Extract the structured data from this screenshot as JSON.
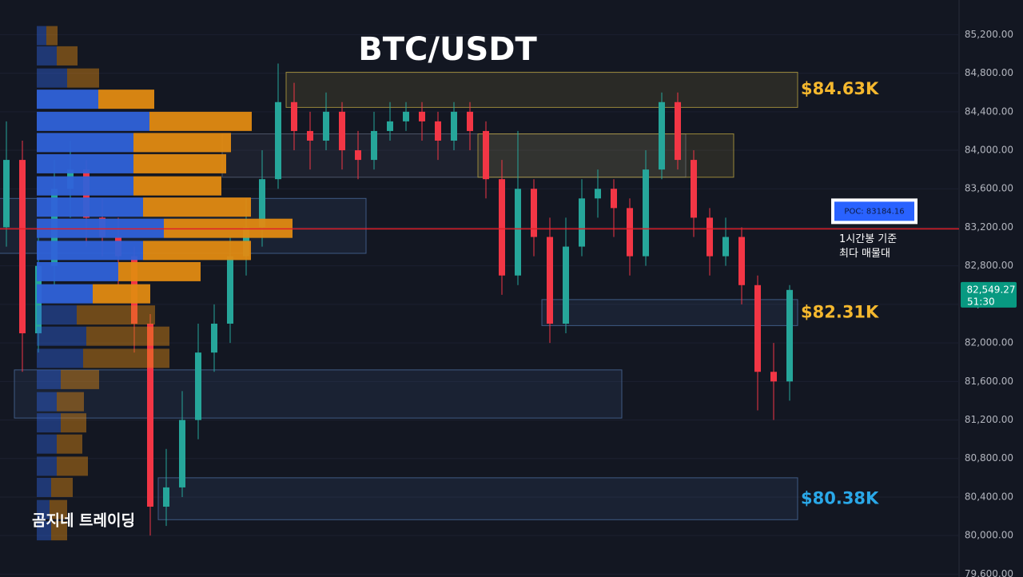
{
  "chart_data": {
    "type": "candlestick",
    "title": "BTC/USDT",
    "watermark": "곰지네 트레이딩",
    "open": [
      83200,
      83900,
      82100,
      82800,
      83600,
      83800,
      83300,
      83100,
      82900,
      82200,
      80300,
      80500,
      81200,
      81900,
      82200,
      82900,
      83200,
      83700,
      84500,
      84200,
      84100,
      84400,
      84000,
      83900,
      84200,
      84300,
      84400,
      84300,
      84100,
      84400,
      84200,
      83700,
      82700,
      83600,
      83100,
      82200,
      83000,
      83500,
      83600,
      83400,
      82900,
      83800,
      84500,
      83900,
      83300,
      82900,
      83100,
      82600,
      81700,
      81600
    ],
    "high": [
      84300,
      84100,
      83200,
      83900,
      84100,
      83900,
      83500,
      83300,
      83000,
      82300,
      80900,
      81500,
      82200,
      82400,
      83100,
      83500,
      84000,
      84900,
      84700,
      84400,
      84600,
      84500,
      84200,
      84400,
      84500,
      84500,
      84500,
      84400,
      84500,
      84500,
      84300,
      83900,
      84200,
      83700,
      83300,
      83300,
      83700,
      83800,
      83700,
      83500,
      84000,
      84600,
      84600,
      84000,
      83400,
      83300,
      83200,
      82700,
      82000,
      82600
    ],
    "low": [
      83000,
      81700,
      81900,
      82600,
      83300,
      83000,
      82900,
      82600,
      81900,
      80000,
      80100,
      80400,
      81000,
      81700,
      82000,
      82700,
      83000,
      83600,
      84000,
      83800,
      84000,
      83800,
      83700,
      83800,
      84100,
      84200,
      84100,
      83900,
      84000,
      84000,
      83500,
      82500,
      82600,
      82900,
      82000,
      82100,
      82900,
      83300,
      83100,
      82700,
      82800,
      83700,
      83800,
      83100,
      82700,
      82800,
      82400,
      81300,
      81200,
      81400
    ],
    "close": [
      83900,
      82100,
      82800,
      83600,
      83800,
      83300,
      83100,
      82900,
      82200,
      80300,
      80500,
      81200,
      81900,
      82200,
      82900,
      83200,
      83700,
      84500,
      84200,
      84100,
      84400,
      84000,
      83900,
      84200,
      84300,
      84400,
      84300,
      84100,
      84400,
      84200,
      83700,
      82700,
      83600,
      83100,
      82200,
      83000,
      83500,
      83600,
      83400,
      82900,
      83800,
      84500,
      83900,
      83300,
      82900,
      83100,
      82600,
      81700,
      81600,
      82550
    ],
    "up_color": "#26a69a",
    "down_color": "#f23645",
    "ylim": [
      79570,
      85560
    ],
    "yticks": [
      {
        "value": 79600,
        "label": "79,600.00"
      },
      {
        "value": 80000,
        "label": "80,000.00"
      },
      {
        "value": 80400,
        "label": "80,400.00"
      },
      {
        "value": 80800,
        "label": "80,800.00"
      },
      {
        "value": 81200,
        "label": "81,200.00"
      },
      {
        "value": 81600,
        "label": "81,600.00"
      },
      {
        "value": 82000,
        "label": "82,000.00"
      },
      {
        "value": 82400,
        "label": "82,400.00"
      },
      {
        "value": 82800,
        "label": "82,800.00"
      },
      {
        "value": 83200,
        "label": "83,200.00"
      },
      {
        "value": 83600,
        "label": "83,600.00"
      },
      {
        "value": 84000,
        "label": "84,000.00"
      },
      {
        "value": 84400,
        "label": "84,400.00"
      },
      {
        "value": 84800,
        "label": "84,800.00"
      },
      {
        "value": 85200,
        "label": "85,200.00"
      }
    ],
    "volume_profile": {
      "levels": [
        85190,
        84980,
        84750,
        84530,
        84300,
        84080,
        83860,
        83630,
        83410,
        83190,
        82960,
        82740,
        82510,
        82290,
        82070,
        81840,
        81620,
        81390,
        81170,
        80950,
        80720,
        80500,
        80270,
        80050
      ],
      "buy": [
        12,
        25,
        38,
        77,
        141,
        121,
        121,
        121,
        133,
        159,
        133,
        102,
        70,
        50,
        62,
        58,
        30,
        25,
        30,
        25,
        25,
        18,
        16,
        18
      ],
      "sell": [
        14,
        26,
        40,
        70,
        128,
        122,
        116,
        110,
        135,
        161,
        135,
        103,
        72,
        98,
        104,
        108,
        48,
        34,
        32,
        32,
        39,
        27,
        22,
        20
      ],
      "buy_color": "#2f62d9",
      "sell_color": "#e08a12"
    },
    "zones": [
      {
        "top": 84810,
        "bottom": 84445,
        "start": 18,
        "end": 49,
        "level": 84630,
        "label": "$84.63K",
        "color": "#b8a040",
        "label_color": "#f5b82e"
      },
      {
        "top": 84170,
        "bottom": 83720,
        "start": 14,
        "end": 42,
        "color": "#5a6478"
      },
      {
        "top": 84170,
        "bottom": 83720,
        "start": 30,
        "end": 45,
        "color": "#b8a040"
      },
      {
        "top": 83500,
        "bottom": 82930,
        "start": 0,
        "end": 22,
        "color": "#4a6a9a"
      },
      {
        "top": 82450,
        "bottom": 82180,
        "start": 34,
        "end": 49,
        "level": 82310,
        "label": "$82.31K",
        "color": "#4a6a9a",
        "label_color": "#f5b82e"
      },
      {
        "top": 81720,
        "bottom": 81220,
        "start": 1,
        "end": 38,
        "color": "#4a6a9a"
      },
      {
        "top": 80600,
        "bottom": 80165,
        "start": 10,
        "end": 49,
        "level": 80380,
        "label": "$80.38K",
        "color": "#4a6a9a",
        "label_color": "#2aa8e8"
      }
    ],
    "poc": {
      "value": 83184.16,
      "label": "POC: 83184.16",
      "note": [
        "1시간봉 기준",
        "최다 매물대"
      ],
      "color": "#e0202a"
    },
    "last_price": {
      "value": 82549.27,
      "label": "82,549.27",
      "countdown": "51:30"
    }
  }
}
